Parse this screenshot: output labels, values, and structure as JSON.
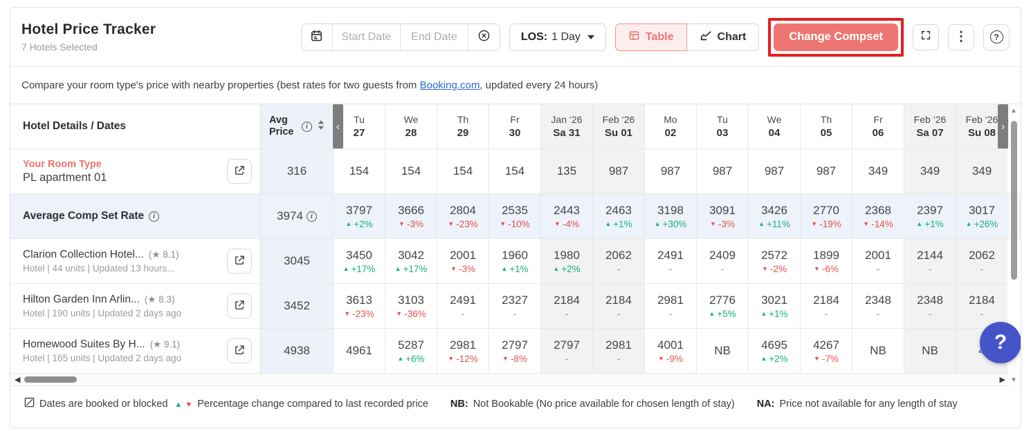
{
  "header": {
    "title": "Hotel Price Tracker",
    "subtitle": "7 Hotels Selected"
  },
  "toolbar": {
    "start_date": "Start Date",
    "end_date": "End Date",
    "los_label": "LOS:",
    "los_value": "1 Day",
    "table": "Table",
    "chart": "Chart",
    "change_compset": "Change Compset"
  },
  "info_bar": {
    "before_link": "Compare your room type's price with nearby properties (best rates for two guests from ",
    "link_text": "Booking.com",
    "after_link": ", updated every 24 hours)"
  },
  "table": {
    "hotel_col_header": "Hotel Details / Dates",
    "avg_col_header": "Avg Price",
    "dates": [
      {
        "line1": "Tu",
        "line2": "27",
        "weekend": false
      },
      {
        "line1": "We",
        "line2": "28",
        "weekend": false
      },
      {
        "line1": "Th",
        "line2": "29",
        "weekend": false
      },
      {
        "line1": "Fr",
        "line2": "30",
        "weekend": false
      },
      {
        "line1": "Jan ‘26",
        "line2": "Sa 31",
        "weekend": true
      },
      {
        "line1": "Feb ‘26",
        "line2": "Su 01",
        "weekend": true
      },
      {
        "line1": "Mo",
        "line2": "02",
        "weekend": false
      },
      {
        "line1": "Tu",
        "line2": "03",
        "weekend": false
      },
      {
        "line1": "We",
        "line2": "04",
        "weekend": false
      },
      {
        "line1": "Th",
        "line2": "05",
        "weekend": false
      },
      {
        "line1": "Fr",
        "line2": "06",
        "weekend": false
      },
      {
        "line1": "Feb ‘26",
        "line2": "Sa 07",
        "weekend": true
      },
      {
        "line1": "Feb ‘26",
        "line2": "Su 08",
        "weekend": true
      }
    ],
    "rows": [
      {
        "type": "your-room",
        "label": "Your Room Type",
        "name": "PL apartment 01",
        "avg": "316",
        "has_link": true,
        "cells": [
          {
            "price": "154"
          },
          {
            "price": "154"
          },
          {
            "price": "154"
          },
          {
            "price": "154"
          },
          {
            "price": "135"
          },
          {
            "price": "987"
          },
          {
            "price": "987"
          },
          {
            "price": "987"
          },
          {
            "price": "987"
          },
          {
            "price": "987"
          },
          {
            "price": "349"
          },
          {
            "price": "349"
          },
          {
            "price": "349"
          }
        ]
      },
      {
        "type": "compset",
        "name": "Average Comp Set Rate",
        "avg": "3974",
        "avg_info": true,
        "has_link": false,
        "cells": [
          {
            "price": "3797",
            "change": "+2%",
            "dir": "up"
          },
          {
            "price": "3666",
            "change": "-3%",
            "dir": "down"
          },
          {
            "price": "2804",
            "change": "-23%",
            "dir": "down"
          },
          {
            "price": "2535",
            "change": "-10%",
            "dir": "down"
          },
          {
            "price": "2443",
            "change": "-4%",
            "dir": "down"
          },
          {
            "price": "2463",
            "change": "+1%",
            "dir": "up"
          },
          {
            "price": "3198",
            "change": "+30%",
            "dir": "up"
          },
          {
            "price": "3091",
            "change": "-3%",
            "dir": "down"
          },
          {
            "price": "3426",
            "change": "+11%",
            "dir": "up"
          },
          {
            "price": "2770",
            "change": "-19%",
            "dir": "down"
          },
          {
            "price": "2368",
            "change": "-14%",
            "dir": "down"
          },
          {
            "price": "2397",
            "change": "+1%",
            "dir": "up"
          },
          {
            "price": "3017",
            "change": "+26%",
            "dir": "up"
          }
        ]
      },
      {
        "type": "hotel",
        "name": "Clarion Collection Hotel...",
        "rating": "8.1",
        "meta": "Hotel | 44 units | Updated 13 hours...",
        "avg": "3045",
        "has_link": true,
        "cells": [
          {
            "price": "3450",
            "change": "+17%",
            "dir": "up"
          },
          {
            "price": "3042",
            "change": "+17%",
            "dir": "up"
          },
          {
            "price": "2001",
            "change": "-3%",
            "dir": "down"
          },
          {
            "price": "1960",
            "change": "+1%",
            "dir": "up"
          },
          {
            "price": "1980",
            "change": "+2%",
            "dir": "up"
          },
          {
            "price": "2062",
            "change": "-"
          },
          {
            "price": "2491",
            "change": "-"
          },
          {
            "price": "2409",
            "change": "-"
          },
          {
            "price": "2572",
            "change": "-2%",
            "dir": "down"
          },
          {
            "price": "1899",
            "change": "-6%",
            "dir": "down"
          },
          {
            "price": "2001",
            "change": "-"
          },
          {
            "price": "2144",
            "change": "-"
          },
          {
            "price": "2062",
            "change": "-"
          }
        ]
      },
      {
        "type": "hotel",
        "name": "Hilton Garden Inn Arlin...",
        "rating": "8.3",
        "meta": "Hotel | 190 units | Updated 2 days ago",
        "avg": "3452",
        "has_link": true,
        "cells": [
          {
            "price": "3613",
            "change": "-23%",
            "dir": "down"
          },
          {
            "price": "3103",
            "change": "-36%",
            "dir": "down"
          },
          {
            "price": "2491",
            "change": "-"
          },
          {
            "price": "2327",
            "change": "-"
          },
          {
            "price": "2184",
            "change": "-"
          },
          {
            "price": "2184",
            "change": "-"
          },
          {
            "price": "2981",
            "change": "-"
          },
          {
            "price": "2776",
            "change": "+5%",
            "dir": "up"
          },
          {
            "price": "3021",
            "change": "+1%",
            "dir": "up"
          },
          {
            "price": "2184",
            "change": "-"
          },
          {
            "price": "2348",
            "change": "-"
          },
          {
            "price": "2348",
            "change": "-"
          },
          {
            "price": "2184",
            "change": "-"
          }
        ]
      },
      {
        "type": "hotel",
        "name": "Homewood Suites By H...",
        "rating": "9.1",
        "meta": "Hotel | 165 units | Updated 2 days ago",
        "avg": "4938",
        "has_link": true,
        "cells": [
          {
            "price": "4961"
          },
          {
            "price": "5287",
            "change": "+6%",
            "dir": "up"
          },
          {
            "price": "2981",
            "change": "-12%",
            "dir": "down"
          },
          {
            "price": "2797",
            "change": "-8%",
            "dir": "down"
          },
          {
            "price": "2797",
            "change": "-"
          },
          {
            "price": "2981",
            "change": "-"
          },
          {
            "price": "4001",
            "change": "-9%",
            "dir": "down"
          },
          {
            "price": "NB"
          },
          {
            "price": "4695",
            "change": "+2%",
            "dir": "up"
          },
          {
            "price": "4267",
            "change": "-7%",
            "dir": "down"
          },
          {
            "price": "NB"
          },
          {
            "price": "NB"
          },
          {
            "price": "4"
          }
        ]
      }
    ]
  },
  "legend": {
    "booked": "Dates are booked or blocked",
    "pct": "Percentage change compared to last recorded price",
    "nb_label": "NB:",
    "nb_text": "Not Bookable (No price available for chosen length of stay)",
    "na_label": "NA:",
    "na_text": "Price not available for any length of stay"
  },
  "help_bubble": "?",
  "colors": {
    "accent": "#ee7672",
    "green": "#17b07e",
    "red": "#e4504b",
    "link_blue": "#2b6cd9",
    "annotation_red": "#e51e22",
    "help_bubble_bg": "#4554c8",
    "avg_col_bg": "#edf1f9",
    "compset_row_bg": "#edf2fb",
    "weekend_bg": "#f2f2f3"
  }
}
